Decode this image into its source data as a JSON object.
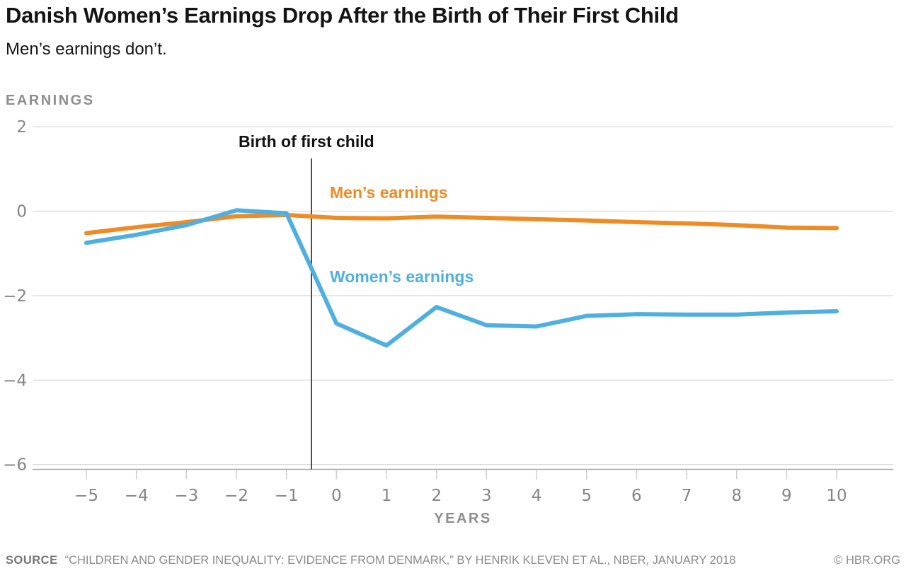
{
  "header": {
    "title": "Danish Women’s Earnings Drop After the Birth of Their First Child",
    "subtitle": "Men’s earnings don’t."
  },
  "chart_data": {
    "type": "line",
    "title": "Danish Women’s Earnings Drop After the Birth of Their First Child",
    "ylabel": "EARNINGS",
    "xlabel": "YEARS",
    "grid": "horizontal-only",
    "legend": "inline-colored-labels",
    "xlim": [
      -5,
      10
    ],
    "ylim": [
      -6.3,
      2.3
    ],
    "x_ticks": [
      -5,
      -4,
      -3,
      -2,
      -1,
      0,
      1,
      2,
      3,
      4,
      5,
      6,
      7,
      8,
      9,
      10
    ],
    "y_ticks": [
      2,
      0,
      -2,
      -4,
      -6
    ],
    "x": [
      -5,
      -4,
      -3,
      -2,
      -1,
      0,
      1,
      2,
      3,
      4,
      5,
      6,
      7,
      8,
      9,
      10
    ],
    "series": [
      {
        "name": "Men’s earnings",
        "color": "#EE8B24",
        "values": [
          -0.52,
          -0.38,
          -0.26,
          -0.12,
          -0.09,
          -0.16,
          -0.17,
          -0.13,
          -0.16,
          -0.19,
          -0.22,
          -0.26,
          -0.29,
          -0.33,
          -0.39,
          -0.4
        ]
      },
      {
        "name": "Women’s earnings",
        "color": "#4FB0E0",
        "values": [
          -0.75,
          -0.56,
          -0.33,
          0.02,
          -0.05,
          -2.66,
          -3.18,
          -2.27,
          -2.7,
          -2.73,
          -2.48,
          -2.44,
          -2.45,
          -2.45,
          -2.4,
          -2.37
        ]
      }
    ],
    "annotations": {
      "birth_line": {
        "x": -0.5,
        "label": "Birth of first child"
      }
    }
  },
  "footer": {
    "source_label": "SOURCE",
    "source_text": "“CHILDREN AND GENDER INEQUALITY: EVIDENCE FROM DENMARK,” BY HENRIK KLEVEN ET AL., NBER, JANUARY 2018",
    "credit": "© HBR.ORG"
  },
  "colors": {
    "men_line": "#EE8B24",
    "women_line": "#4FB0E0",
    "gridline": "#dcdcdc",
    "axis_line": "#a8a8a8",
    "tick_mark": "#cccccc",
    "tick_label": "#858585",
    "birth_line": "#3d3d3d",
    "title_text": "#141414",
    "axis_title": "#8e8e8e"
  }
}
